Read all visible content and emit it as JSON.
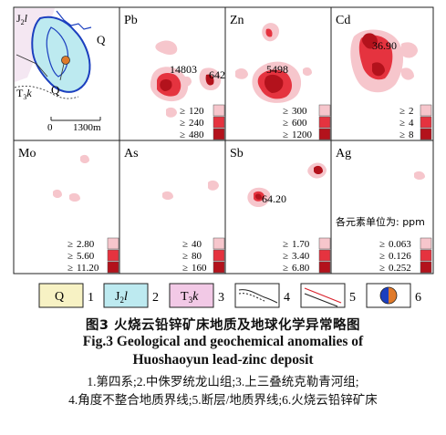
{
  "panels": [
    {
      "id": "geology",
      "label_j": "J",
      "label_j_sub": "2",
      "label_j_ital": "l",
      "label_q1": "Q",
      "label_q2": "Q",
      "label_t": "T",
      "label_t_sub": "3",
      "label_t_ital": "k",
      "scale_zero": "0",
      "scale_dist": "1300m"
    },
    {
      "id": "pb",
      "title": "Pb",
      "peak_values": [
        "14803",
        "642"
      ],
      "legend": [
        "120",
        "240",
        "480"
      ]
    },
    {
      "id": "zn",
      "title": "Zn",
      "peak_values": [
        "5498"
      ],
      "legend": [
        "300",
        "600",
        "1200"
      ]
    },
    {
      "id": "cd",
      "title": "Cd",
      "peak_values": [
        "36.90"
      ],
      "legend": [
        "2",
        "4",
        "8"
      ]
    },
    {
      "id": "mo",
      "title": "Mo",
      "peak_values": [],
      "legend": [
        "2.80",
        "5.60",
        "11.20"
      ]
    },
    {
      "id": "as",
      "title": "As",
      "peak_values": [],
      "legend": [
        "40",
        "80",
        "160"
      ]
    },
    {
      "id": "sb",
      "title": "Sb",
      "peak_values": [
        "64.20"
      ],
      "legend": [
        "1.70",
        "3.40",
        "6.80"
      ]
    },
    {
      "id": "ag",
      "title": "Ag",
      "peak_values": [],
      "unit_note": "各元素单位为: ppm",
      "legend": [
        "0.063",
        "0.126",
        "0.252"
      ]
    }
  ],
  "geq": "≥",
  "legend_items": [
    {
      "num": "1",
      "sym": "Q"
    },
    {
      "num": "2",
      "sym": "J",
      "sub": "2",
      "ital": "l"
    },
    {
      "num": "3",
      "sym": "T",
      "sub": "3",
      "ital": "k"
    },
    {
      "num": "4"
    },
    {
      "num": "5"
    },
    {
      "num": "6"
    }
  ],
  "colors": {
    "zone_low": "#f6c6cc",
    "zone_mid": "#e5333f",
    "zone_high": "#b3121c",
    "quaternary": "#f7f2c4",
    "jurassic": "#bdeaf0",
    "triassic": "#f2c9e6",
    "boundary": "#1b3fbf",
    "fault": "#d9202a",
    "ore": "#e07a2a"
  },
  "caption": {
    "title_cn": "图3  火烧云铅锌矿床地质及地球化学异常略图",
    "title_en_1": "Fig.3  Geological and geochemical anomalies of",
    "title_en_2": "Huoshaoyun lead-zinc deposit",
    "note_1": "1.第四系;2.中侏罗统龙山组;3.上三叠统克勒青河组;",
    "note_2": "4.角度不整合地质界线;5.断层/地质界线;6.火烧云铅锌矿床"
  }
}
